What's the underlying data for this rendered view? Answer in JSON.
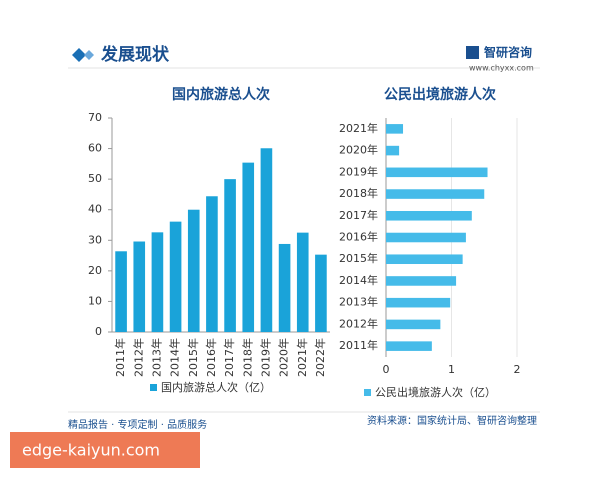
{
  "header": {
    "title": "发展现状",
    "brand": "智研咨询",
    "url": "www.chyxx.com"
  },
  "footer": {
    "left": "精品报告 · 专项定制 · 品质服务",
    "source": "资料来源：国家统计局、智研咨询整理"
  },
  "banner": "edge-kaiyun.com",
  "chart_data": [
    {
      "type": "bar",
      "title": "国内旅游总人次",
      "categories": [
        "2011年",
        "2012年",
        "2013年",
        "2014年",
        "2015年",
        "2016年",
        "2017年",
        "2018年",
        "2019年",
        "2020年",
        "2021年",
        "2022年"
      ],
      "series": [
        {
          "name": "国内旅游总人次（亿）",
          "color": "#1aa3d9",
          "values": [
            26.4,
            29.6,
            32.6,
            36.1,
            40,
            44.4,
            50,
            55.4,
            60.1,
            28.8,
            32.5,
            25.3
          ]
        }
      ],
      "ylim": [
        0,
        70
      ],
      "yticks": [
        0,
        10,
        20,
        30,
        40,
        50,
        60,
        70
      ]
    },
    {
      "type": "hbar",
      "title": "公民出境旅游人次",
      "categories": [
        "2011年",
        "2012年",
        "2013年",
        "2014年",
        "2015年",
        "2016年",
        "2017年",
        "2018年",
        "2019年",
        "2020年",
        "2021年"
      ],
      "series": [
        {
          "name": "公民出境旅游人次（亿）",
          "color": "#45bbe9",
          "values": [
            0.7,
            0.83,
            0.98,
            1.07,
            1.17,
            1.22,
            1.31,
            1.5,
            1.55,
            0.2,
            0.26
          ]
        }
      ],
      "xlim": [
        0,
        2
      ],
      "xticks": [
        0,
        1,
        2
      ],
      "grid": true
    }
  ]
}
